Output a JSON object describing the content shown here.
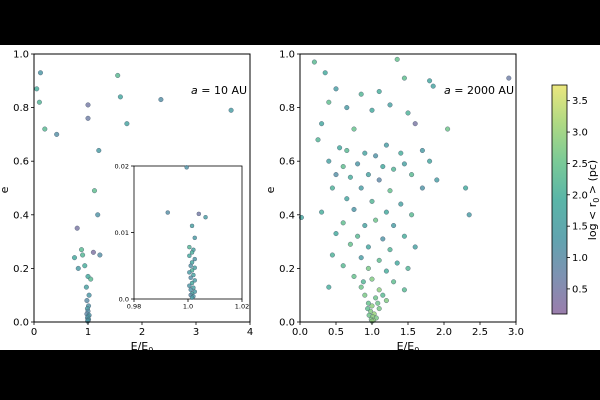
{
  "chart_data": [
    {
      "type": "scatter",
      "panel": "left",
      "annotation": "a = 10 AU",
      "annotation_italic": "a",
      "annotation_rest": " = 10 AU",
      "xlabel": "E/E",
      "xlabel_sub": "0",
      "ylabel": "e",
      "xlim": [
        0,
        4
      ],
      "ylim": [
        0,
        1
      ],
      "xticks": [
        "0",
        "1",
        "2",
        "3",
        "4"
      ],
      "yticks": [
        "0.0",
        "0.2",
        "0.4",
        "0.6",
        "0.8",
        "1.0"
      ],
      "points": [
        {
          "x": 0.05,
          "y": 0.87,
          "c": 2.0
        },
        {
          "x": 0.12,
          "y": 0.93,
          "c": 1.3
        },
        {
          "x": 0.1,
          "y": 0.82,
          "c": 2.2
        },
        {
          "x": 0.2,
          "y": 0.72,
          "c": 2.3
        },
        {
          "x": 0.42,
          "y": 0.7,
          "c": 1.1
        },
        {
          "x": 1.0,
          "y": 0.81,
          "c": 0.5
        },
        {
          "x": 1.0,
          "y": 0.76,
          "c": 0.6
        },
        {
          "x": 1.55,
          "y": 0.92,
          "c": 2.3
        },
        {
          "x": 1.6,
          "y": 0.84,
          "c": 1.8
        },
        {
          "x": 1.72,
          "y": 0.74,
          "c": 1.7
        },
        {
          "x": 2.35,
          "y": 0.83,
          "c": 1.1
        },
        {
          "x": 3.65,
          "y": 0.79,
          "c": 1.5
        },
        {
          "x": 1.2,
          "y": 0.64,
          "c": 1.4
        },
        {
          "x": 1.12,
          "y": 0.49,
          "c": 2.4
        },
        {
          "x": 1.18,
          "y": 0.4,
          "c": 1.2
        },
        {
          "x": 0.8,
          "y": 0.35,
          "c": 0.4
        },
        {
          "x": 0.88,
          "y": 0.27,
          "c": 2.3
        },
        {
          "x": 0.9,
          "y": 0.25,
          "c": 2.2
        },
        {
          "x": 0.75,
          "y": 0.24,
          "c": 1.9
        },
        {
          "x": 1.1,
          "y": 0.26,
          "c": 0.3
        },
        {
          "x": 1.22,
          "y": 0.25,
          "c": 1.1
        },
        {
          "x": 0.94,
          "y": 0.21,
          "c": 2.0
        },
        {
          "x": 0.82,
          "y": 0.2,
          "c": 1.4
        },
        {
          "x": 1.0,
          "y": 0.17,
          "c": 1.9
        },
        {
          "x": 1.05,
          "y": 0.16,
          "c": 2.3
        },
        {
          "x": 0.97,
          "y": 0.13,
          "c": 1.6
        },
        {
          "x": 1.02,
          "y": 0.1,
          "c": 1.3
        },
        {
          "x": 0.98,
          "y": 0.08,
          "c": 1.0
        },
        {
          "x": 1.01,
          "y": 0.06,
          "c": 1.2
        },
        {
          "x": 0.99,
          "y": 0.05,
          "c": 1.5
        },
        {
          "x": 1.0,
          "y": 0.04,
          "c": 1.1
        },
        {
          "x": 0.98,
          "y": 0.03,
          "c": 0.9
        },
        {
          "x": 1.02,
          "y": 0.025,
          "c": 1.3
        },
        {
          "x": 1.0,
          "y": 0.02,
          "c": 1.5
        },
        {
          "x": 0.99,
          "y": 0.015,
          "c": 1.2
        },
        {
          "x": 1.01,
          "y": 0.01,
          "c": 1.4
        },
        {
          "x": 1.0,
          "y": 0.006,
          "c": 1.6
        },
        {
          "x": 0.995,
          "y": 0.003,
          "c": 1.3
        }
      ],
      "inset": {
        "xlim": [
          0.98,
          1.02
        ],
        "ylim": [
          0,
          0.02
        ],
        "xticks": [
          "0.98",
          "1.0",
          "1.02"
        ],
        "yticks": [
          "0.0",
          "0.01",
          "0.02"
        ],
        "points": [
          {
            "x": 0.9995,
            "y": 0.0198,
            "c": 1.2
          },
          {
            "x": 0.9925,
            "y": 0.013,
            "c": 1.1
          },
          {
            "x": 1.0065,
            "y": 0.0123,
            "c": 1.5
          },
          {
            "x": 1.004,
            "y": 0.0128,
            "c": 0.5
          },
          {
            "x": 1.0015,
            "y": 0.011,
            "c": 1.6
          },
          {
            "x": 1.0025,
            "y": 0.0092,
            "c": 1.4
          },
          {
            "x": 1.0005,
            "y": 0.0078,
            "c": 2.2
          },
          {
            "x": 1.002,
            "y": 0.0074,
            "c": 1.7
          },
          {
            "x": 1.0015,
            "y": 0.007,
            "c": 2.0
          },
          {
            "x": 1.0005,
            "y": 0.0065,
            "c": 1.9
          },
          {
            "x": 1.0025,
            "y": 0.006,
            "c": 1.3
          },
          {
            "x": 1.0015,
            "y": 0.0055,
            "c": 1.8
          },
          {
            "x": 1.001,
            "y": 0.005,
            "c": 1.2
          },
          {
            "x": 1.0025,
            "y": 0.0047,
            "c": 1.6
          },
          {
            "x": 1.0015,
            "y": 0.0043,
            "c": 2.1
          },
          {
            "x": 1.0005,
            "y": 0.004,
            "c": 1.4
          },
          {
            "x": 1.002,
            "y": 0.0036,
            "c": 1.7
          },
          {
            "x": 1.001,
            "y": 0.0032,
            "c": 1.1
          },
          {
            "x": 1.0025,
            "y": 0.0028,
            "c": 1.5
          },
          {
            "x": 1.0015,
            "y": 0.0024,
            "c": 1.9
          },
          {
            "x": 1.0005,
            "y": 0.002,
            "c": 1.3
          },
          {
            "x": 1.002,
            "y": 0.0017,
            "c": 1.6
          },
          {
            "x": 1.001,
            "y": 0.0014,
            "c": 1.2
          },
          {
            "x": 1.0025,
            "y": 0.0011,
            "c": 1.4
          },
          {
            "x": 1.0015,
            "y": 0.0008,
            "c": 1.8
          },
          {
            "x": 1.001,
            "y": 0.0006,
            "c": 1.0
          },
          {
            "x": 1.002,
            "y": 0.0004,
            "c": 1.3
          },
          {
            "x": 1.0015,
            "y": 0.0002,
            "c": 1.5
          }
        ]
      }
    },
    {
      "type": "scatter",
      "panel": "right",
      "annotation": "a = 2000 AU",
      "annotation_italic": "a",
      "annotation_rest": " = 2000 AU",
      "xlabel": "E/E",
      "xlabel_sub": "0",
      "ylabel": "e",
      "xlim": [
        0,
        3
      ],
      "ylim": [
        0,
        1
      ],
      "xticks": [
        "0.0",
        "0.5",
        "1.0",
        "1.5",
        "2.0",
        "2.5",
        "3.0"
      ],
      "yticks": [
        "0.0",
        "0.2",
        "0.4",
        "0.6",
        "0.8",
        "1.0"
      ],
      "points": [
        {
          "x": 0.2,
          "y": 0.97,
          "c": 2.3
        },
        {
          "x": 0.35,
          "y": 0.93,
          "c": 1.9
        },
        {
          "x": 1.35,
          "y": 0.98,
          "c": 2.5
        },
        {
          "x": 0.5,
          "y": 0.87,
          "c": 1.5
        },
        {
          "x": 0.85,
          "y": 0.85,
          "c": 2.2
        },
        {
          "x": 1.1,
          "y": 0.86,
          "c": 2.0
        },
        {
          "x": 1.45,
          "y": 0.91,
          "c": 2.4
        },
        {
          "x": 1.8,
          "y": 0.9,
          "c": 1.8
        },
        {
          "x": 2.9,
          "y": 0.91,
          "c": 0.6
        },
        {
          "x": 0.4,
          "y": 0.82,
          "c": 2.4
        },
        {
          "x": 0.65,
          "y": 0.8,
          "c": 1.4
        },
        {
          "x": 1.0,
          "y": 0.79,
          "c": 1.9
        },
        {
          "x": 1.25,
          "y": 0.81,
          "c": 1.6
        },
        {
          "x": 1.5,
          "y": 0.78,
          "c": 2.1
        },
        {
          "x": 1.85,
          "y": 0.88,
          "c": 1.7
        },
        {
          "x": 0.3,
          "y": 0.74,
          "c": 1.8
        },
        {
          "x": 0.75,
          "y": 0.72,
          "c": 2.5
        },
        {
          "x": 1.6,
          "y": 0.74,
          "c": 0.4
        },
        {
          "x": 2.05,
          "y": 0.72,
          "c": 2.6
        },
        {
          "x": 0.25,
          "y": 0.68,
          "c": 2.2
        },
        {
          "x": 1.2,
          "y": 0.66,
          "c": 1.5
        },
        {
          "x": 0.55,
          "y": 0.65,
          "c": 1.9
        },
        {
          "x": 0.65,
          "y": 0.64,
          "c": 2.3
        },
        {
          "x": 0.9,
          "y": 0.63,
          "c": 1.7
        },
        {
          "x": 1.05,
          "y": 0.62,
          "c": 1.2
        },
        {
          "x": 1.4,
          "y": 0.63,
          "c": 2.0
        },
        {
          "x": 1.7,
          "y": 0.64,
          "c": 1.4
        },
        {
          "x": 0.4,
          "y": 0.6,
          "c": 1.6
        },
        {
          "x": 0.6,
          "y": 0.58,
          "c": 2.4
        },
        {
          "x": 0.8,
          "y": 0.59,
          "c": 1.3
        },
        {
          "x": 1.15,
          "y": 0.58,
          "c": 1.9
        },
        {
          "x": 1.3,
          "y": 0.57,
          "c": 2.2
        },
        {
          "x": 1.45,
          "y": 0.59,
          "c": 1.6
        },
        {
          "x": 1.8,
          "y": 0.6,
          "c": 1.8
        },
        {
          "x": 0.5,
          "y": 0.55,
          "c": 1.1
        },
        {
          "x": 0.7,
          "y": 0.54,
          "c": 2.0
        },
        {
          "x": 0.95,
          "y": 0.55,
          "c": 1.7
        },
        {
          "x": 1.1,
          "y": 0.53,
          "c": 0.9
        },
        {
          "x": 1.55,
          "y": 0.55,
          "c": 2.3
        },
        {
          "x": 1.9,
          "y": 0.53,
          "c": 1.5
        },
        {
          "x": 2.3,
          "y": 0.5,
          "c": 1.9
        },
        {
          "x": 0.45,
          "y": 0.5,
          "c": 2.1
        },
        {
          "x": 0.85,
          "y": 0.5,
          "c": 1.5
        },
        {
          "x": 1.25,
          "y": 0.49,
          "c": 2.5
        },
        {
          "x": 1.7,
          "y": 0.5,
          "c": 1.2
        },
        {
          "x": 0.65,
          "y": 0.46,
          "c": 1.8
        },
        {
          "x": 1.0,
          "y": 0.45,
          "c": 2.2
        },
        {
          "x": 1.4,
          "y": 0.44,
          "c": 1.6
        },
        {
          "x": 0.3,
          "y": 0.41,
          "c": 2.0
        },
        {
          "x": 0.75,
          "y": 0.42,
          "c": 1.3
        },
        {
          "x": 1.2,
          "y": 0.41,
          "c": 1.9
        },
        {
          "x": 1.55,
          "y": 0.4,
          "c": 2.3
        },
        {
          "x": 2.35,
          "y": 0.4,
          "c": 1.4
        },
        {
          "x": 0.02,
          "y": 0.39,
          "c": 1.8
        },
        {
          "x": 0.6,
          "y": 0.37,
          "c": 2.4
        },
        {
          "x": 0.9,
          "y": 0.36,
          "c": 1.7
        },
        {
          "x": 1.05,
          "y": 0.38,
          "c": 2.6
        },
        {
          "x": 1.3,
          "y": 0.36,
          "c": 1.5
        },
        {
          "x": 0.5,
          "y": 0.33,
          "c": 1.9
        },
        {
          "x": 0.8,
          "y": 0.32,
          "c": 2.3
        },
        {
          "x": 1.15,
          "y": 0.31,
          "c": 1.2
        },
        {
          "x": 1.45,
          "y": 0.32,
          "c": 2.0
        },
        {
          "x": 0.7,
          "y": 0.29,
          "c": 2.5
        },
        {
          "x": 0.95,
          "y": 0.28,
          "c": 1.8
        },
        {
          "x": 1.25,
          "y": 0.27,
          "c": 2.2
        },
        {
          "x": 1.6,
          "y": 0.28,
          "c": 1.6
        },
        {
          "x": 0.45,
          "y": 0.25,
          "c": 2.1
        },
        {
          "x": 0.85,
          "y": 0.24,
          "c": 1.5
        },
        {
          "x": 1.1,
          "y": 0.23,
          "c": 2.4
        },
        {
          "x": 1.35,
          "y": 0.22,
          "c": 1.9
        },
        {
          "x": 0.6,
          "y": 0.21,
          "c": 2.3
        },
        {
          "x": 0.95,
          "y": 0.2,
          "c": 2.7
        },
        {
          "x": 1.2,
          "y": 0.19,
          "c": 2.0
        },
        {
          "x": 1.5,
          "y": 0.2,
          "c": 2.2
        },
        {
          "x": 0.75,
          "y": 0.17,
          "c": 2.5
        },
        {
          "x": 1.0,
          "y": 0.16,
          "c": 2.8
        },
        {
          "x": 1.3,
          "y": 0.15,
          "c": 2.4
        },
        {
          "x": 0.4,
          "y": 0.13,
          "c": 2.0
        },
        {
          "x": 0.85,
          "y": 0.13,
          "c": 2.6
        },
        {
          "x": 1.1,
          "y": 0.12,
          "c": 2.9
        },
        {
          "x": 1.45,
          "y": 0.12,
          "c": 2.3
        },
        {
          "x": 0.9,
          "y": 0.1,
          "c": 2.7
        },
        {
          "x": 1.05,
          "y": 0.09,
          "c": 2.6
        },
        {
          "x": 1.2,
          "y": 0.08,
          "c": 2.8
        },
        {
          "x": 0.95,
          "y": 0.07,
          "c": 2.5
        },
        {
          "x": 1.0,
          "y": 0.06,
          "c": 2.9
        },
        {
          "x": 1.1,
          "y": 0.05,
          "c": 2.7
        },
        {
          "x": 0.98,
          "y": 0.04,
          "c": 2.8
        },
        {
          "x": 1.03,
          "y": 0.03,
          "c": 3.0
        },
        {
          "x": 0.96,
          "y": 0.025,
          "c": 2.6
        },
        {
          "x": 1.01,
          "y": 0.02,
          "c": 2.9
        },
        {
          "x": 1.06,
          "y": 0.015,
          "c": 2.7
        },
        {
          "x": 0.99,
          "y": 0.01,
          "c": 2.8
        },
        {
          "x": 1.02,
          "y": 0.006,
          "c": 3.0
        },
        {
          "x": 1.0,
          "y": 0.003,
          "c": 2.9
        },
        {
          "x": 0.94,
          "y": 0.05,
          "c": 2.4
        },
        {
          "x": 1.08,
          "y": 0.07,
          "c": 2.6
        },
        {
          "x": 1.15,
          "y": 0.1,
          "c": 2.3
        },
        {
          "x": 0.88,
          "y": 0.15,
          "c": 2.2
        }
      ]
    }
  ],
  "colorbar": {
    "label": "log < r",
    "label_sub": "0",
    "label_rest": " > (pc)",
    "range": [
      0.1,
      3.75
    ],
    "ticks": [
      "0.5",
      "1.0",
      "1.5",
      "2.0",
      "2.5",
      "3.0",
      "3.5"
    ],
    "colors": [
      "#8f6fa3",
      "#6f86a9",
      "#4f9aa6",
      "#48ad9e",
      "#6cc48b",
      "#a6d575",
      "#e9e470"
    ]
  }
}
